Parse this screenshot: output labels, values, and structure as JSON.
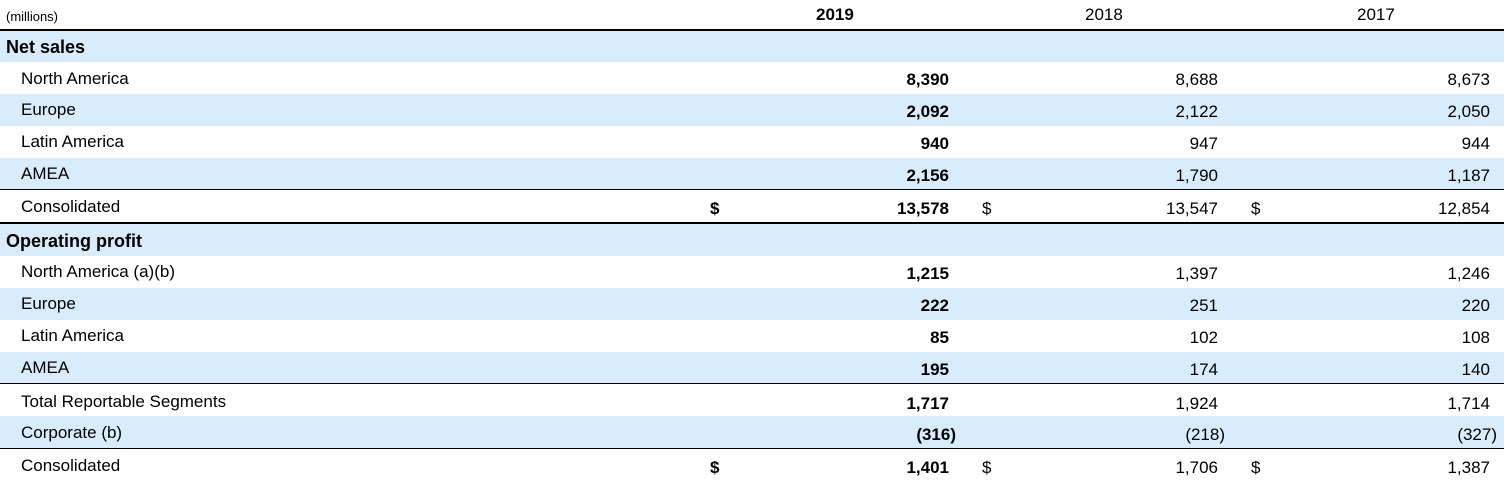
{
  "header": {
    "unit": "(millions)",
    "years": [
      "2019",
      "2018",
      "2017"
    ]
  },
  "net_sales": {
    "title": "Net sales",
    "rows": [
      {
        "label": "North America",
        "v2019": "8,390",
        "v2018": "8,688",
        "v2017": "8,673"
      },
      {
        "label": "Europe",
        "v2019": "2,092",
        "v2018": "2,122",
        "v2017": "2,050"
      },
      {
        "label": "Latin America",
        "v2019": "940",
        "v2018": "947",
        "v2017": "944"
      },
      {
        "label": "AMEA",
        "v2019": "2,156",
        "v2018": "1,790",
        "v2017": "1,187"
      }
    ],
    "total": {
      "label": "Consolidated",
      "currency": "$",
      "v2019": "13,578",
      "v2018": "13,547",
      "v2017": "12,854"
    }
  },
  "operating_profit": {
    "title": "Operating profit",
    "rows": [
      {
        "label": "North America (a)(b)",
        "v2019": "1,215",
        "v2018": "1,397",
        "v2017": "1,246"
      },
      {
        "label": "Europe",
        "v2019": "222",
        "v2018": "251",
        "v2017": "220"
      },
      {
        "label": "Latin America",
        "v2019": "85",
        "v2018": "102",
        "v2017": "108"
      },
      {
        "label": "AMEA",
        "v2019": "195",
        "v2018": "174",
        "v2017": "140"
      }
    ],
    "subtotal": {
      "label": "Total Reportable Segments",
      "v2019": "1,717",
      "v2018": "1,924",
      "v2017": "1,714"
    },
    "corporate": {
      "label": "Corporate (b)",
      "v2019": "(316)",
      "v2018": "(218)",
      "v2017": "(327)"
    },
    "total": {
      "label": "Consolidated",
      "currency": "$",
      "v2019": "1,401",
      "v2018": "1,706",
      "v2017": "1,387"
    }
  }
}
